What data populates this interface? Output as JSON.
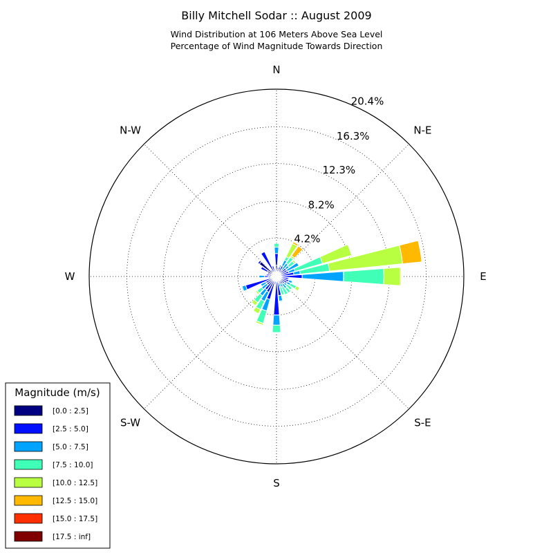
{
  "chart_data": {
    "type": "windrose",
    "title": "Billy Mitchell Sodar :: August 2009",
    "subtitle_lines": [
      "Wind Distribution at 106 Meters Above Sea Level",
      "Percentage of Wind Magnitude Towards Direction"
    ],
    "unit": "%",
    "r_max": 20.4,
    "radial_ticks": [
      4.2,
      8.2,
      12.3,
      16.3,
      20.4
    ],
    "radial_tick_labels": [
      "4.2%",
      "8.2%",
      "12.3%",
      "16.3%",
      "20.4%"
    ],
    "directions": [
      "N",
      "N-E",
      "E",
      "S-E",
      "S",
      "S-W",
      "W",
      "N-W"
    ],
    "sector_count": 36,
    "sector_width_deg": 10,
    "legend": {
      "title": "Magnitude (m/s)",
      "placement": "bottom-left",
      "bins": [
        {
          "label": "[0.0 : 2.5]",
          "color": "#000080"
        },
        {
          "label": "[2.5 : 5.0]",
          "color": "#0010ff"
        },
        {
          "label": "[5.0 : 7.5]",
          "color": "#00a4ff"
        },
        {
          "label": "[7.5 : 10.0]",
          "color": "#40ffb7"
        },
        {
          "label": "[10.0 : 12.5]",
          "color": "#b7ff40"
        },
        {
          "label": "[12.5 : 15.0]",
          "color": "#ffb900"
        },
        {
          "label": "[15.0 : 17.5]",
          "color": "#ff3000"
        },
        {
          "label": "[17.5 : inf]",
          "color": "#800000"
        }
      ]
    },
    "sectors": [
      {
        "dir": 0,
        "values": [
          1.2,
          1.3,
          0.7,
          0.4,
          0,
          0,
          0,
          0
        ]
      },
      {
        "dir": 10,
        "values": [
          0.8,
          0.2,
          0,
          0,
          0,
          0,
          0,
          0
        ]
      },
      {
        "dir": 20,
        "values": [
          0.6,
          0.5,
          0.2,
          0,
          0,
          0,
          0,
          0
        ]
      },
      {
        "dir": 30,
        "values": [
          0.4,
          0.9,
          0.7,
          0.4,
          1.6,
          0.2,
          0,
          0
        ]
      },
      {
        "dir": 40,
        "values": [
          0.3,
          0.6,
          0.9,
          0.8,
          0.2,
          1.3,
          0,
          0
        ]
      },
      {
        "dir": 50,
        "values": [
          0.3,
          1.0,
          0.4,
          0.7,
          0.2,
          0,
          0,
          0
        ]
      },
      {
        "dir": 60,
        "values": [
          0.3,
          1.0,
          1.4,
          0,
          0,
          0,
          0,
          0
        ]
      },
      {
        "dir": 70,
        "values": [
          0.4,
          1.0,
          0.7,
          3.1,
          3.3,
          0,
          0,
          0
        ]
      },
      {
        "dir": 80,
        "values": [
          0.4,
          1.5,
          0.7,
          3.2,
          8.0,
          2.1,
          0,
          0
        ]
      },
      {
        "dir": 90,
        "values": [
          0.4,
          2.4,
          4.5,
          4.4,
          1.8,
          0.1,
          0,
          0
        ]
      },
      {
        "dir": 100,
        "values": [
          0.3,
          1.0,
          0.1,
          0,
          0,
          0,
          0,
          0
        ]
      },
      {
        "dir": 110,
        "values": [
          0.3,
          1.1,
          0.4,
          0.1,
          0,
          0,
          0,
          0
        ]
      },
      {
        "dir": 120,
        "values": [
          0.3,
          1.0,
          0.4,
          0.7,
          0.4,
          0,
          0,
          0
        ]
      },
      {
        "dir": 130,
        "values": [
          0.3,
          0.8,
          0.3,
          0.7,
          0,
          0,
          0,
          0
        ]
      },
      {
        "dir": 140,
        "values": [
          0.3,
          0.7,
          0.6,
          0.6,
          0,
          0,
          0,
          0
        ]
      },
      {
        "dir": 150,
        "values": [
          0.3,
          0.6,
          0.4,
          0.9,
          0,
          0,
          0,
          0
        ]
      },
      {
        "dir": 160,
        "values": [
          0.3,
          0.4,
          0.5,
          0.9,
          0,
          0,
          0,
          0
        ]
      },
      {
        "dir": 170,
        "values": [
          0.3,
          1.8,
          0.6,
          0.1,
          0,
          0,
          0,
          0
        ]
      },
      {
        "dir": 180,
        "values": [
          0.3,
          3.9,
          1.1,
          0.8,
          0,
          0,
          0,
          0
        ]
      },
      {
        "dir": 190,
        "values": [
          0.3,
          0.5,
          0.1,
          0,
          0,
          0,
          0,
          0
        ]
      },
      {
        "dir": 200,
        "values": [
          0.4,
          2.2,
          1.3,
          1.4,
          0.2,
          0,
          0,
          0
        ]
      },
      {
        "dir": 210,
        "values": [
          0.4,
          1.5,
          1.1,
          1.0,
          0.5,
          0,
          0,
          0
        ]
      },
      {
        "dir": 220,
        "values": [
          0.3,
          1.5,
          0.8,
          0.9,
          0.4,
          0,
          0,
          0
        ]
      },
      {
        "dir": 230,
        "values": [
          0.3,
          1.0,
          0.7,
          0.6,
          0.2,
          0,
          0,
          0
        ]
      },
      {
        "dir": 240,
        "values": [
          0.3,
          1.0,
          0.6,
          0,
          0,
          0,
          0,
          0
        ]
      },
      {
        "dir": 250,
        "values": [
          0.3,
          3.2,
          0.4,
          0.1,
          0,
          0,
          0,
          0
        ]
      },
      {
        "dir": 260,
        "values": [
          0.3,
          0.4,
          0.2,
          0,
          0,
          0,
          0,
          0
        ]
      },
      {
        "dir": 270,
        "values": [
          0.9,
          0.4,
          0.6,
          0,
          0,
          0,
          0,
          0
        ]
      },
      {
        "dir": 280,
        "values": [
          0.8,
          0.3,
          0,
          0,
          0,
          0,
          0,
          0
        ]
      },
      {
        "dir": 290,
        "values": [
          0.6,
          0.4,
          0,
          0,
          0,
          0,
          0,
          0
        ]
      },
      {
        "dir": 300,
        "values": [
          1.1,
          0.8,
          0,
          0,
          0,
          0,
          0,
          0
        ]
      },
      {
        "dir": 310,
        "values": [
          2.3,
          0.2,
          0,
          0,
          0,
          0,
          0,
          0
        ]
      },
      {
        "dir": 320,
        "values": [
          0.6,
          0.3,
          0,
          0,
          0,
          0,
          0,
          0
        ]
      },
      {
        "dir": 330,
        "values": [
          0.5,
          2.5,
          0,
          0,
          0,
          0,
          0,
          0
        ]
      },
      {
        "dir": 340,
        "values": [
          0.5,
          0.7,
          0,
          0,
          0,
          0,
          0,
          0
        ]
      },
      {
        "dir": 350,
        "values": [
          0.5,
          0.2,
          0,
          0,
          0,
          0,
          0,
          0
        ]
      }
    ]
  }
}
